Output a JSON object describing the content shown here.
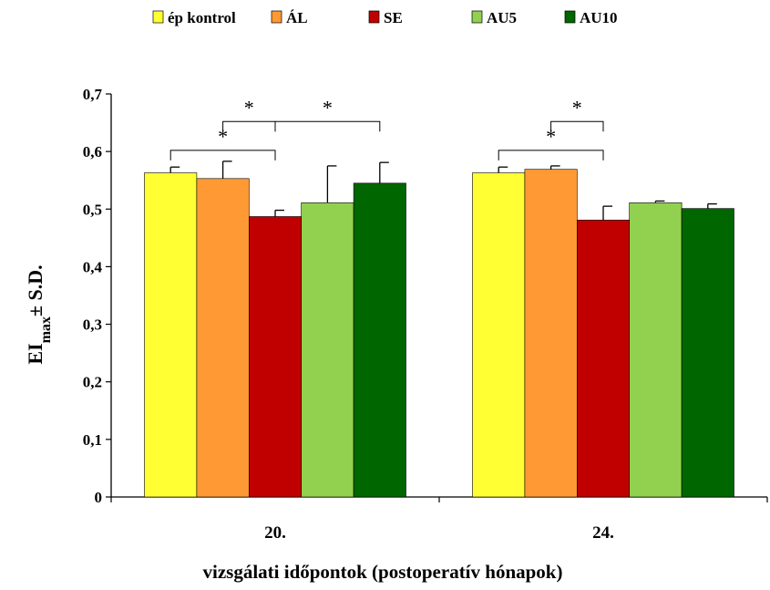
{
  "chart_data": {
    "type": "bar",
    "categories": [
      "20.",
      "24."
    ],
    "series": [
      {
        "name": "ép kontrol",
        "color": "#FFFF33",
        "values": [
          0.563,
          0.563
        ],
        "errors": [
          0.01,
          0.01
        ]
      },
      {
        "name": "ÁL",
        "color": "#FF9933",
        "values": [
          0.553,
          0.569
        ],
        "errors": [
          0.03,
          0.006
        ]
      },
      {
        "name": "SE",
        "color": "#C00000",
        "values": [
          0.487,
          0.481
        ],
        "errors": [
          0.011,
          0.024
        ]
      },
      {
        "name": "AU5",
        "color": "#92D050",
        "values": [
          0.511,
          0.511
        ],
        "errors": [
          0.064,
          0.003
        ]
      },
      {
        "name": "AU10",
        "color": "#006600",
        "values": [
          0.545,
          0.501
        ],
        "errors": [
          0.036,
          0.008
        ]
      }
    ],
    "ylim": [
      0,
      0.7
    ],
    "yticks": [
      "0",
      "0,1",
      "0,2",
      "0,3",
      "0,4",
      "0,5",
      "0,6",
      "0,7"
    ],
    "ylabel": {
      "main": "EI",
      "sub": "max",
      "rest": "± S.D."
    },
    "xlabel": "vizsgálati időpontok (postoperatív hónapok)",
    "legend_position": "top",
    "grid": false,
    "significance": [
      {
        "category": 0,
        "from": 1,
        "to": 2,
        "level": 0.652,
        "label": "*"
      },
      {
        "category": 0,
        "from": 0,
        "to": 2,
        "level": 0.602,
        "label": "*"
      },
      {
        "category": 0,
        "from": 2,
        "to": 4,
        "level": 0.652,
        "label": "*"
      },
      {
        "category": 1,
        "from": 1,
        "to": 2,
        "level": 0.652,
        "label": "*"
      },
      {
        "category": 1,
        "from": 0,
        "to": 2,
        "level": 0.602,
        "label": "*"
      }
    ]
  }
}
